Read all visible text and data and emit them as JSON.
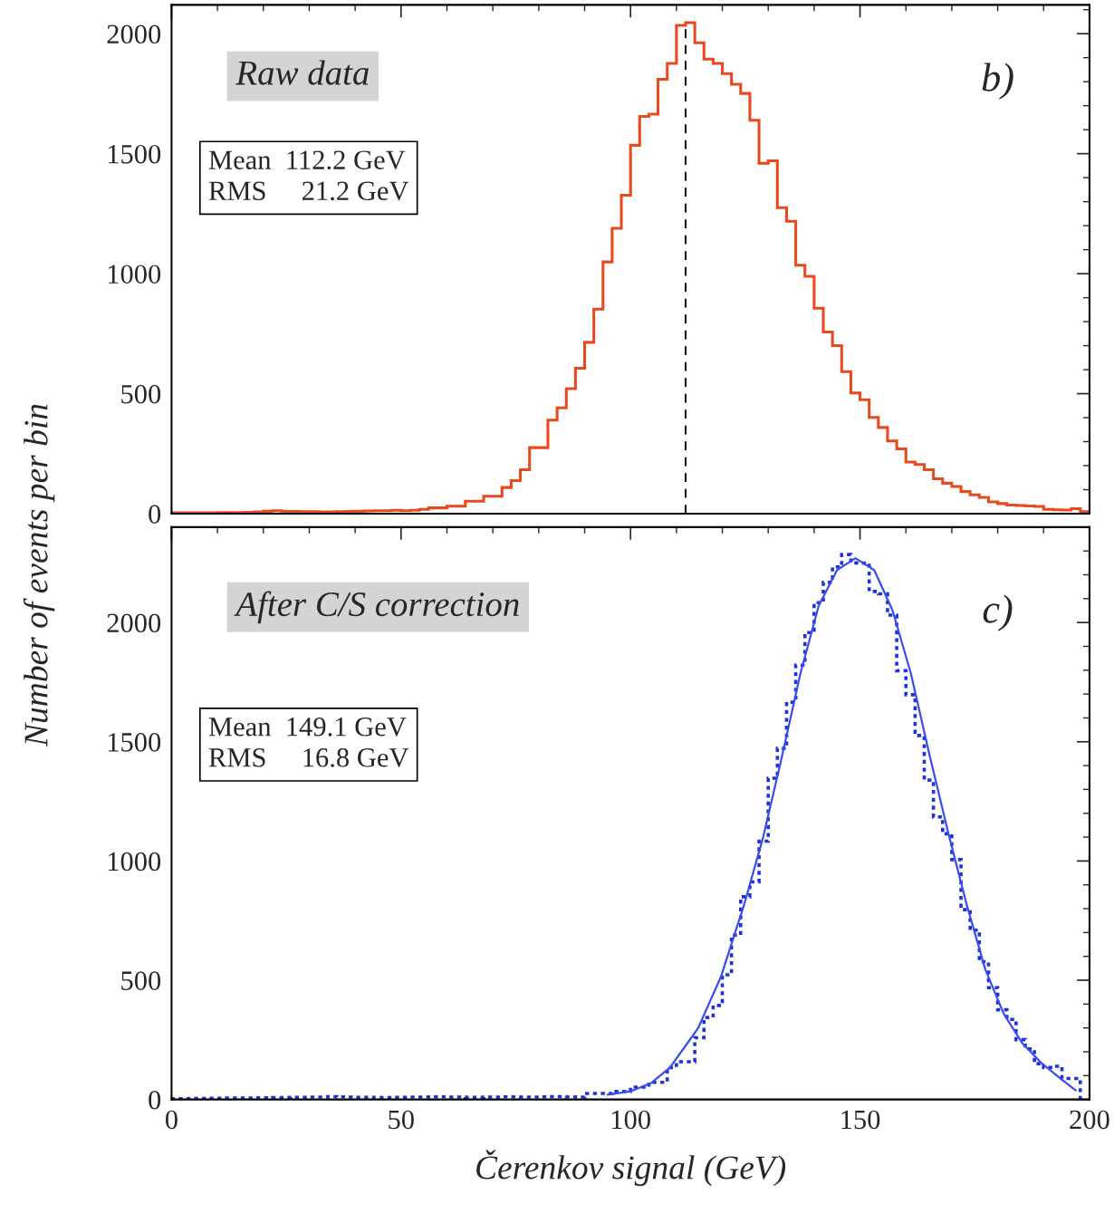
{
  "chart_data": [
    {
      "type": "histogram",
      "ylabel": "Number of events per bin",
      "color": "#e84a1e",
      "bins": [
        0,
        2,
        4,
        6,
        8,
        10,
        12,
        14,
        16,
        18,
        20,
        22,
        24,
        26,
        28,
        30,
        32,
        34,
        36,
        38,
        40,
        42,
        44,
        46,
        48,
        50,
        52,
        54,
        56,
        58,
        60,
        62,
        64,
        66,
        68,
        70,
        72,
        74,
        76,
        78,
        80,
        82,
        84,
        86,
        88,
        90,
        92,
        94,
        96,
        98,
        100,
        102,
        104,
        106,
        108,
        110,
        112,
        114,
        116,
        118,
        120,
        122,
        124,
        126,
        128,
        130,
        132,
        134,
        136,
        138,
        140,
        142,
        144,
        146,
        148,
        150,
        152,
        154,
        156,
        158,
        160,
        162,
        164,
        166,
        168,
        170,
        172,
        174,
        176,
        178,
        180,
        182,
        184,
        186,
        188,
        190,
        192,
        194,
        196,
        198,
        200
      ],
      "values": [
        4,
        4,
        4,
        4,
        4,
        5,
        5,
        5,
        6,
        7,
        10,
        12,
        9,
        9,
        8,
        8,
        7,
        7,
        8,
        9,
        10,
        11,
        12,
        12,
        14,
        12,
        14,
        18,
        24,
        24,
        31,
        31,
        52,
        52,
        73,
        73,
        109,
        138,
        183,
        275,
        275,
        390,
        441,
        521,
        606,
        714,
        852,
        1049,
        1189,
        1327,
        1535,
        1655,
        1665,
        1810,
        1876,
        2035,
        2046,
        1962,
        1894,
        1876,
        1834,
        1789,
        1751,
        1639,
        1460,
        1470,
        1275,
        1218,
        1035,
        989,
        856,
        757,
        700,
        592,
        503,
        475,
        401,
        359,
        303,
        270,
        215,
        205,
        183,
        145,
        127,
        113,
        92,
        78,
        68,
        49,
        42,
        36,
        34,
        32,
        30,
        18,
        16,
        15,
        21,
        8
      ],
      "ref_lines": [
        {
          "axis": "x",
          "value": 112,
          "color": "#000000",
          "line_style": "dashed"
        }
      ],
      "annotations": [
        "Raw data",
        "Mean  112.2 GeV\nRMS     21.2 GeV",
        "b)"
      ],
      "xlim": [
        0,
        200
      ],
      "xticks": [
        0,
        50,
        100,
        150,
        200
      ],
      "ylim": [
        0,
        2120
      ],
      "yticks": [
        0,
        500,
        1000,
        1500,
        2000
      ],
      "tick_labels": "y",
      "grid": false,
      "legend": false
    },
    {
      "type": "histogram",
      "xlabel": "Čerenkov signal (GeV)",
      "bins": [
        0,
        2,
        4,
        6,
        8,
        10,
        12,
        14,
        16,
        18,
        20,
        22,
        24,
        26,
        28,
        30,
        32,
        34,
        36,
        38,
        40,
        42,
        44,
        46,
        48,
        50,
        52,
        54,
        56,
        58,
        60,
        62,
        64,
        66,
        68,
        70,
        72,
        74,
        76,
        78,
        80,
        82,
        84,
        86,
        88,
        90,
        92,
        94,
        96,
        98,
        100,
        102,
        104,
        106,
        108,
        110,
        112,
        114,
        116,
        118,
        120,
        122,
        124,
        126,
        128,
        130,
        132,
        134,
        136,
        138,
        140,
        142,
        144,
        146,
        148,
        150,
        152,
        154,
        156,
        158,
        160,
        162,
        164,
        166,
        168,
        170,
        172,
        174,
        176,
        178,
        180,
        182,
        184,
        186,
        188,
        190,
        192,
        194,
        196,
        198
      ],
      "series": [
        {
          "type": "histogram",
          "color": "#1e32d8",
          "line_style": "dotted",
          "values": [
            3,
            3,
            4,
            4,
            5,
            5,
            6,
            6,
            6,
            7,
            7,
            8,
            8,
            9,
            9,
            10,
            10,
            12,
            11,
            10,
            9,
            9,
            8,
            8,
            9,
            9,
            10,
            10,
            11,
            11,
            10,
            10,
            9,
            9,
            10,
            10,
            11,
            11,
            10,
            10,
            11,
            12,
            12,
            11,
            10,
            25,
            25,
            25,
            34,
            34,
            52,
            52,
            72,
            72,
            134,
            158,
            158,
            259,
            344,
            394,
            523,
            689,
            850,
            912,
            1083,
            1347,
            1472,
            1666,
            1821,
            1958,
            2083,
            2168,
            2233,
            2285,
            2250,
            2249,
            2130,
            2120,
            2031,
            1798,
            1697,
            1526,
            1339,
            1185,
            1114,
            1006,
            796,
            710,
            578,
            469,
            376,
            336,
            251,
            212,
            150,
            134,
            139,
            88,
            88
          ]
        },
        {
          "type": "line",
          "color": "#3a4cf0",
          "line_style": "solid",
          "x": [
            95,
            100,
            104.6,
            108.6,
            114.7,
            119.7,
            124.8,
            128.9,
            132.9,
            137,
            141,
            145,
            149,
            153.1,
            157.1,
            161.1,
            165.2,
            169.2,
            173.2,
            177.3,
            181.3,
            185.4,
            189.4,
            193.4,
            197
          ],
          "values": [
            20,
            34,
            70,
            134,
            298,
            515,
            820,
            1100,
            1430,
            1785,
            2070,
            2220,
            2270,
            2220,
            2050,
            1785,
            1440,
            1120,
            820,
            545,
            360,
            235,
            155,
            92,
            38
          ]
        }
      ],
      "annotations": [
        "After C/S correction",
        "Mean  149.1 GeV\nRMS     16.8 GeV",
        "c)"
      ],
      "xlim": [
        0,
        200
      ],
      "xticks": [
        0,
        50,
        100,
        150,
        200
      ],
      "ylim": [
        0,
        2400
      ],
      "yticks": [
        0,
        500,
        1000,
        1500,
        2000
      ],
      "grid": false,
      "legend": false
    }
  ]
}
